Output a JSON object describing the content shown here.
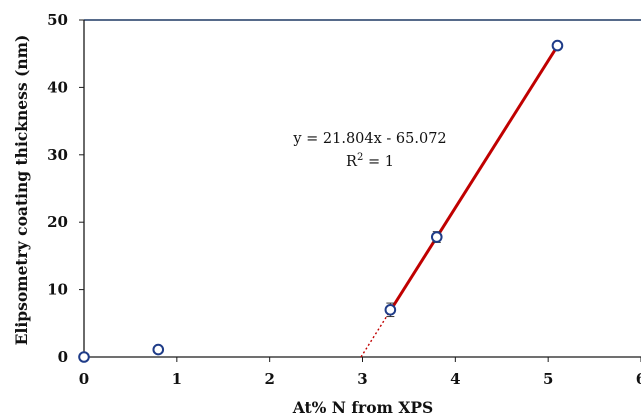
{
  "chart_data": {
    "type": "scatter",
    "xlabel": "At% N from XPS",
    "ylabel": "Elipsometry coating thickness (nm)",
    "xlim": [
      0,
      6
    ],
    "ylim": [
      0,
      50
    ],
    "xticks": [
      "0",
      "1",
      "2",
      "3",
      "4",
      "5",
      "6"
    ],
    "yticks": [
      "0",
      "10",
      "20",
      "30",
      "40",
      "50"
    ],
    "grid": false,
    "series": [
      {
        "x": [
          0,
          0.8,
          3.3,
          3.8,
          5.1
        ],
        "y": [
          0,
          1.1,
          7.0,
          17.8,
          46.2
        ],
        "error": [
          0,
          0,
          1.0,
          0.8,
          0.3
        ],
        "marker": "open-circle",
        "color": "#1f3c88"
      }
    ],
    "trendline": {
      "slope": 21.804,
      "intercept": -65.072,
      "x_range": [
        3.3,
        5.1
      ],
      "extrapolated_x_range": [
        2.984,
        3.3
      ],
      "color": "#c00000",
      "equation": "y = 21.804x - 65.072",
      "r2_prefix": "R",
      "r2_sup": "2",
      "r2_suffix": " = 1"
    }
  }
}
